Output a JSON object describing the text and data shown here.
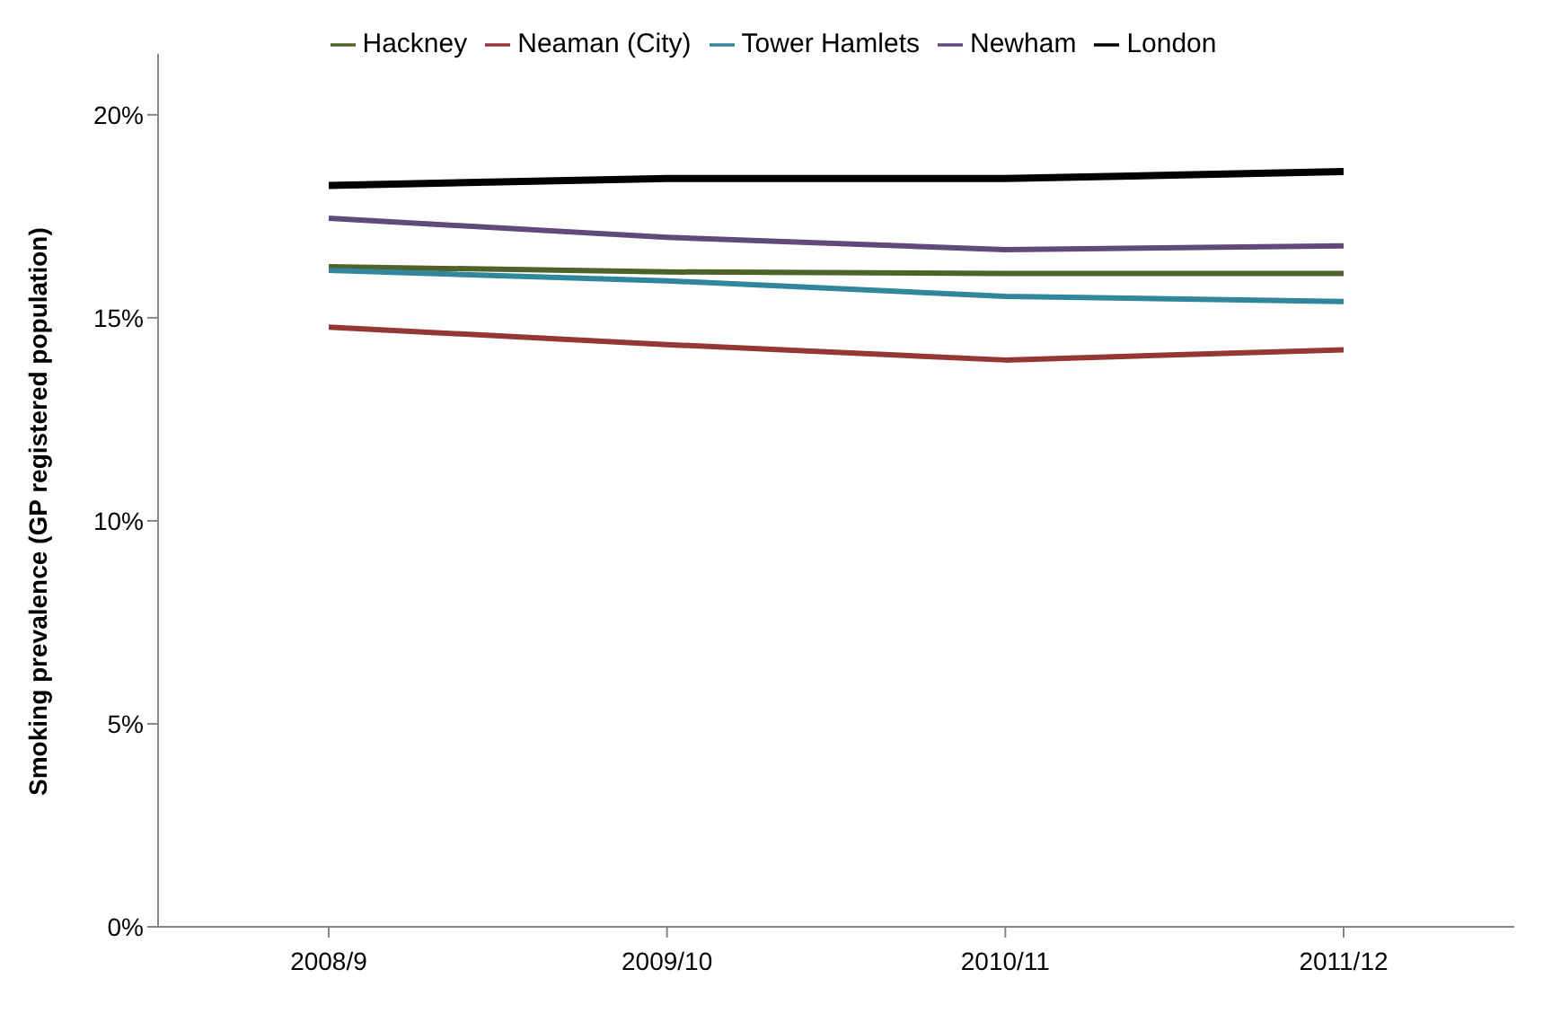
{
  "chart_data": {
    "type": "line",
    "ylabel": "Smoking prevalence (GP registered population)",
    "categories": [
      "2008/9",
      "2009/10",
      "2010/11",
      "2011/12"
    ],
    "series": [
      {
        "name": "Hackney",
        "color": "#4f6228",
        "values": [
          16.26,
          16.13,
          16.09,
          16.09
        ]
      },
      {
        "name": "Neaman (City)",
        "color": "#953735",
        "values": [
          14.77,
          14.34,
          13.96,
          14.21
        ]
      },
      {
        "name": "Tower Hamlets",
        "color": "#31859c",
        "values": [
          16.17,
          15.91,
          15.53,
          15.4
        ]
      },
      {
        "name": "Newham",
        "color": "#604a7b",
        "values": [
          17.45,
          16.98,
          16.68,
          16.77
        ]
      },
      {
        "name": "London",
        "color": "#000000",
        "values": [
          18.26,
          18.43,
          18.43,
          18.6
        ]
      }
    ],
    "ylim": [
      0,
      21.5
    ],
    "yticks": [
      {
        "value": 0,
        "label": "0%"
      },
      {
        "value": 5,
        "label": "5%"
      },
      {
        "value": 10,
        "label": "10%"
      },
      {
        "value": 15,
        "label": "15%"
      },
      {
        "value": 20,
        "label": "20%"
      }
    ],
    "grid": false,
    "legend": "top",
    "marker": "none",
    "line_style": "solid"
  }
}
